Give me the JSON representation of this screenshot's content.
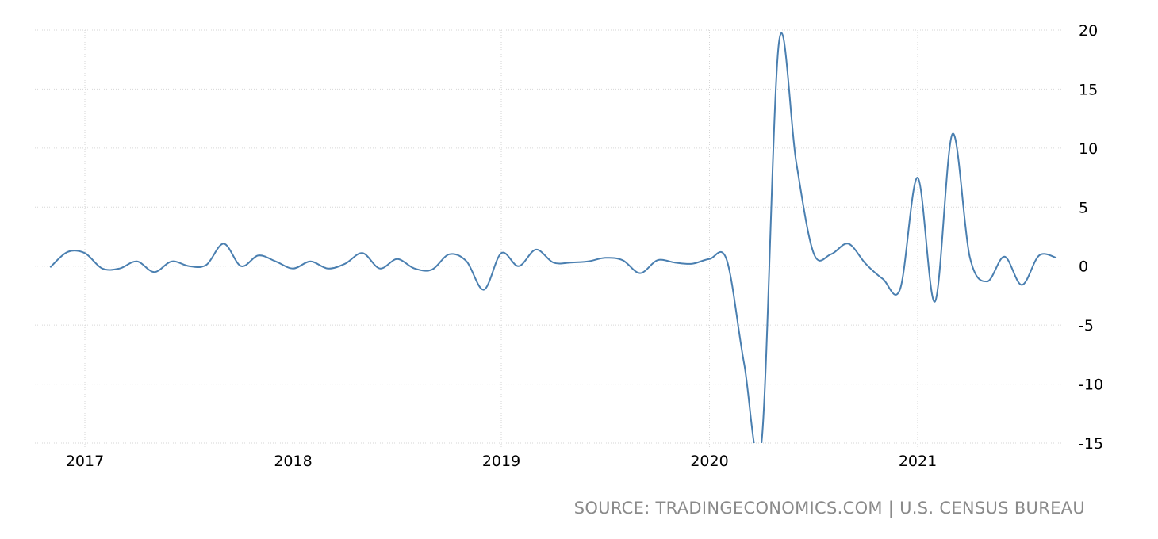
{
  "chart_data": {
    "type": "line",
    "title": "",
    "xlabel": "",
    "ylabel": "",
    "ylim": [
      -15,
      20
    ],
    "y_ticks": [
      "20",
      "15",
      "10",
      "5",
      "0",
      "-5",
      "-10",
      "-15"
    ],
    "x_ticks": [
      "2017",
      "2018",
      "2019",
      "2020",
      "2021"
    ],
    "grid": true,
    "line_color": "#4a7fb0",
    "series": [
      {
        "x": [
          "2016-11",
          "2016-12",
          "2017-01",
          "2017-02",
          "2017-03",
          "2017-04",
          "2017-05",
          "2017-06",
          "2017-07",
          "2017-08",
          "2017-09",
          "2017-10",
          "2017-11",
          "2017-12",
          "2018-01",
          "2018-02",
          "2018-03",
          "2018-04",
          "2018-05",
          "2018-06",
          "2018-07",
          "2018-08",
          "2018-09",
          "2018-10",
          "2018-11",
          "2018-12",
          "2019-01",
          "2019-02",
          "2019-03",
          "2019-04",
          "2019-05",
          "2019-06",
          "2019-07",
          "2019-08",
          "2019-09",
          "2019-10",
          "2019-11",
          "2019-12",
          "2020-01",
          "2020-02",
          "2020-03",
          "2020-04",
          "2020-05",
          "2020-06",
          "2020-07",
          "2020-08",
          "2020-09",
          "2020-10",
          "2020-11",
          "2020-12",
          "2021-01",
          "2021-02",
          "2021-03",
          "2021-04",
          "2021-05",
          "2021-06",
          "2021-07",
          "2021-08",
          "2021-09"
        ],
        "values": [
          -0.1,
          1.2,
          1.1,
          -0.2,
          -0.2,
          0.4,
          -0.5,
          0.4,
          0.0,
          0.1,
          1.9,
          0.0,
          0.9,
          0.4,
          -0.2,
          0.4,
          -0.2,
          0.2,
          1.1,
          -0.2,
          0.6,
          -0.2,
          -0.3,
          1.0,
          0.4,
          -2.0,
          1.1,
          0.0,
          1.4,
          0.3,
          0.3,
          0.4,
          0.7,
          0.5,
          -0.6,
          0.5,
          0.3,
          0.2,
          0.6,
          0.5,
          -8.3,
          -15.0,
          18.9,
          8.8,
          1.1,
          1.0,
          1.9,
          0.2,
          -1.1,
          -1.9,
          7.5,
          -3.0,
          11.2,
          0.8,
          -1.3,
          0.8,
          -1.6,
          0.9,
          0.7
        ]
      }
    ]
  },
  "source_text": "SOURCE: TRADINGECONOMICS.COM | U.S. CENSUS BUREAU"
}
